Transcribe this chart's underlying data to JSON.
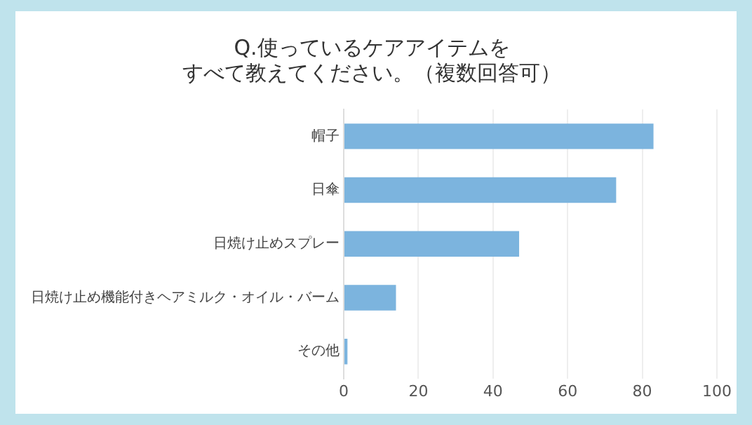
{
  "chart_data": {
    "type": "bar",
    "orientation": "horizontal",
    "title": [
      "Q.使っているケアアイテムを",
      "すべて教えてください。（複数回答可）"
    ],
    "categories": [
      "帽子",
      "日傘",
      "日焼け止めスプレー",
      "日焼け止め機能付きヘアミルク・オイル・バーム",
      "その他"
    ],
    "values": [
      83,
      73,
      47,
      14,
      1
    ],
    "color": "#7cb4de",
    "xlim": [
      0,
      100
    ],
    "xticks": [
      0,
      20,
      40,
      60,
      80,
      100
    ],
    "grid": "x",
    "legend": false
  }
}
